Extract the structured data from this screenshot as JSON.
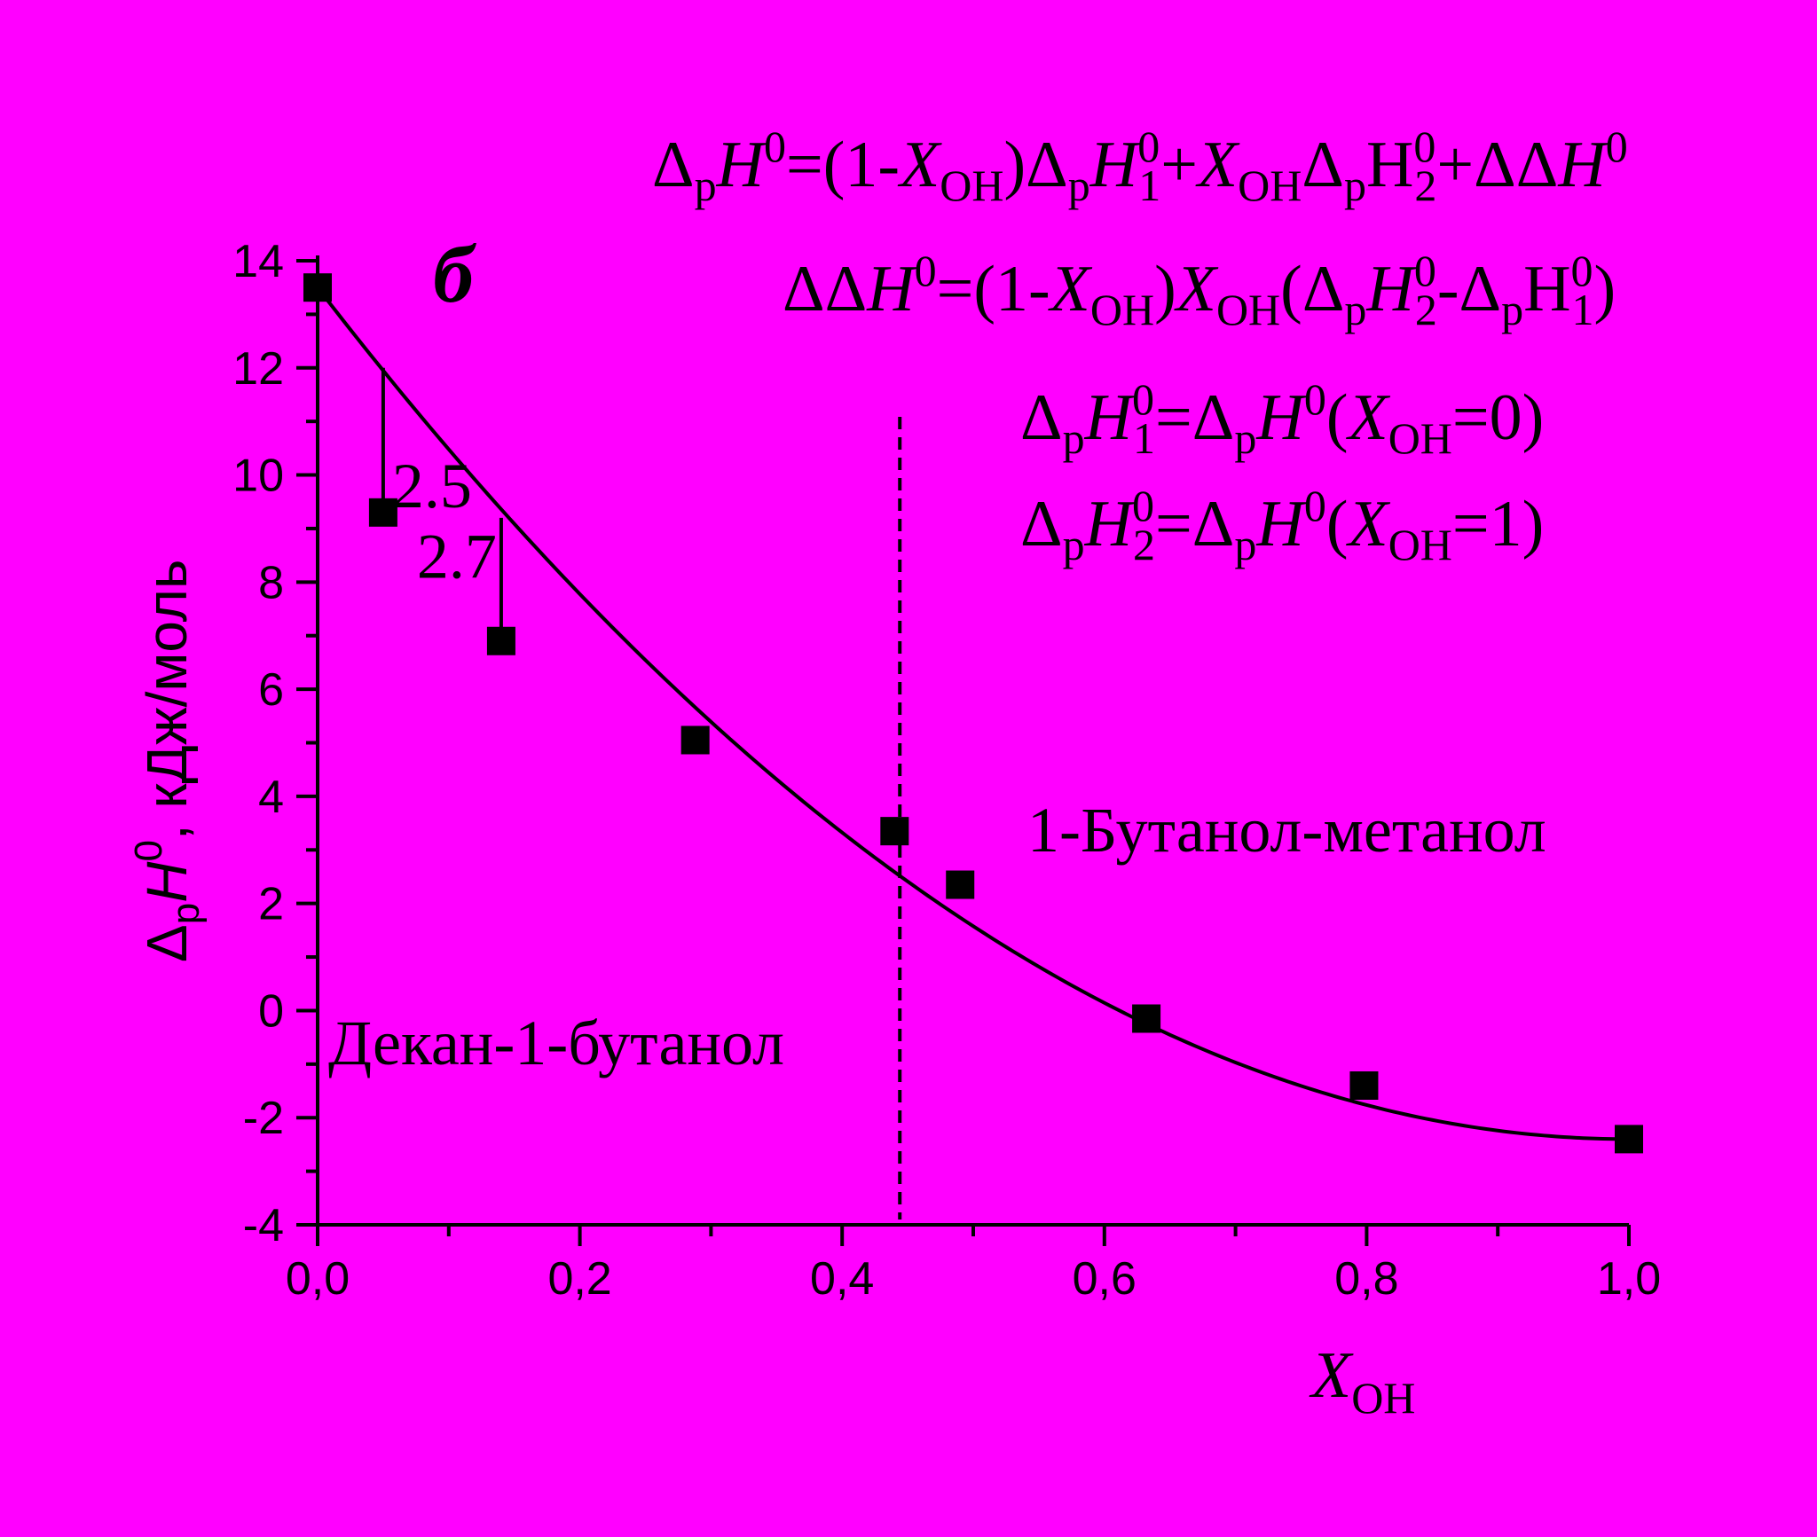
{
  "chart_data": {
    "type": "scatter",
    "panel_label": "б",
    "xlabel": {
      "main": "X",
      "sub": "OH"
    },
    "ylabel": {
      "delta": "Δ",
      "sub": "p",
      "var": "H",
      "sup": "0",
      "units": ", кДж/моль"
    },
    "xlim": [
      0.0,
      1.0
    ],
    "ylim": [
      -4,
      14
    ],
    "x_ticks": [
      0.0,
      0.2,
      0.4,
      0.6,
      0.8,
      1.0
    ],
    "x_tick_labels": [
      "0,0",
      "0,2",
      "0,4",
      "0,6",
      "0,8",
      "1,0"
    ],
    "y_ticks": [
      -4,
      -2,
      0,
      2,
      4,
      6,
      8,
      10,
      12,
      14
    ],
    "y_tick_labels": [
      "-4",
      "-2",
      "0",
      "2",
      "4",
      "6",
      "8",
      "10",
      "12",
      "14"
    ],
    "grid": false,
    "points": [
      {
        "x": 0.0,
        "y": 13.5
      },
      {
        "x": 0.05,
        "y": 9.3
      },
      {
        "x": 0.14,
        "y": 6.9
      },
      {
        "x": 0.288,
        "y": 5.05
      },
      {
        "x": 0.44,
        "y": 3.35
      },
      {
        "x": 0.49,
        "y": 2.35
      },
      {
        "x": 0.632,
        "y": -0.15
      },
      {
        "x": 0.798,
        "y": -1.4
      },
      {
        "x": 1.0,
        "y": -2.4
      }
    ],
    "fit_curve": {
      "formula": "(1-x)*H1 + x*H2 + (1-x)*x*(H2-H1)",
      "H1": 13.5,
      "H2": -2.4
    },
    "divider_x": 0.444,
    "annotations": [
      {
        "text": "2.5",
        "x": 0.05,
        "y_from": 12.0,
        "y_to": 9.3
      },
      {
        "text": "2.7",
        "x": 0.14,
        "y_from": 9.2,
        "y_to": 6.9
      }
    ],
    "region_labels": [
      "Декан-1-бутанол",
      "1-Бутанол-метанол"
    ],
    "equations": [
      "ΔpH0=(1-XOH)ΔpH10+XOHΔpH20+ΔΔH0",
      "ΔΔH0=(1-XOH)XOH(ΔpH20-ΔpH10)",
      "ΔpH10=ΔpH0(XOH=0)",
      "ΔpH20=ΔpH0(XOH=1)"
    ]
  }
}
